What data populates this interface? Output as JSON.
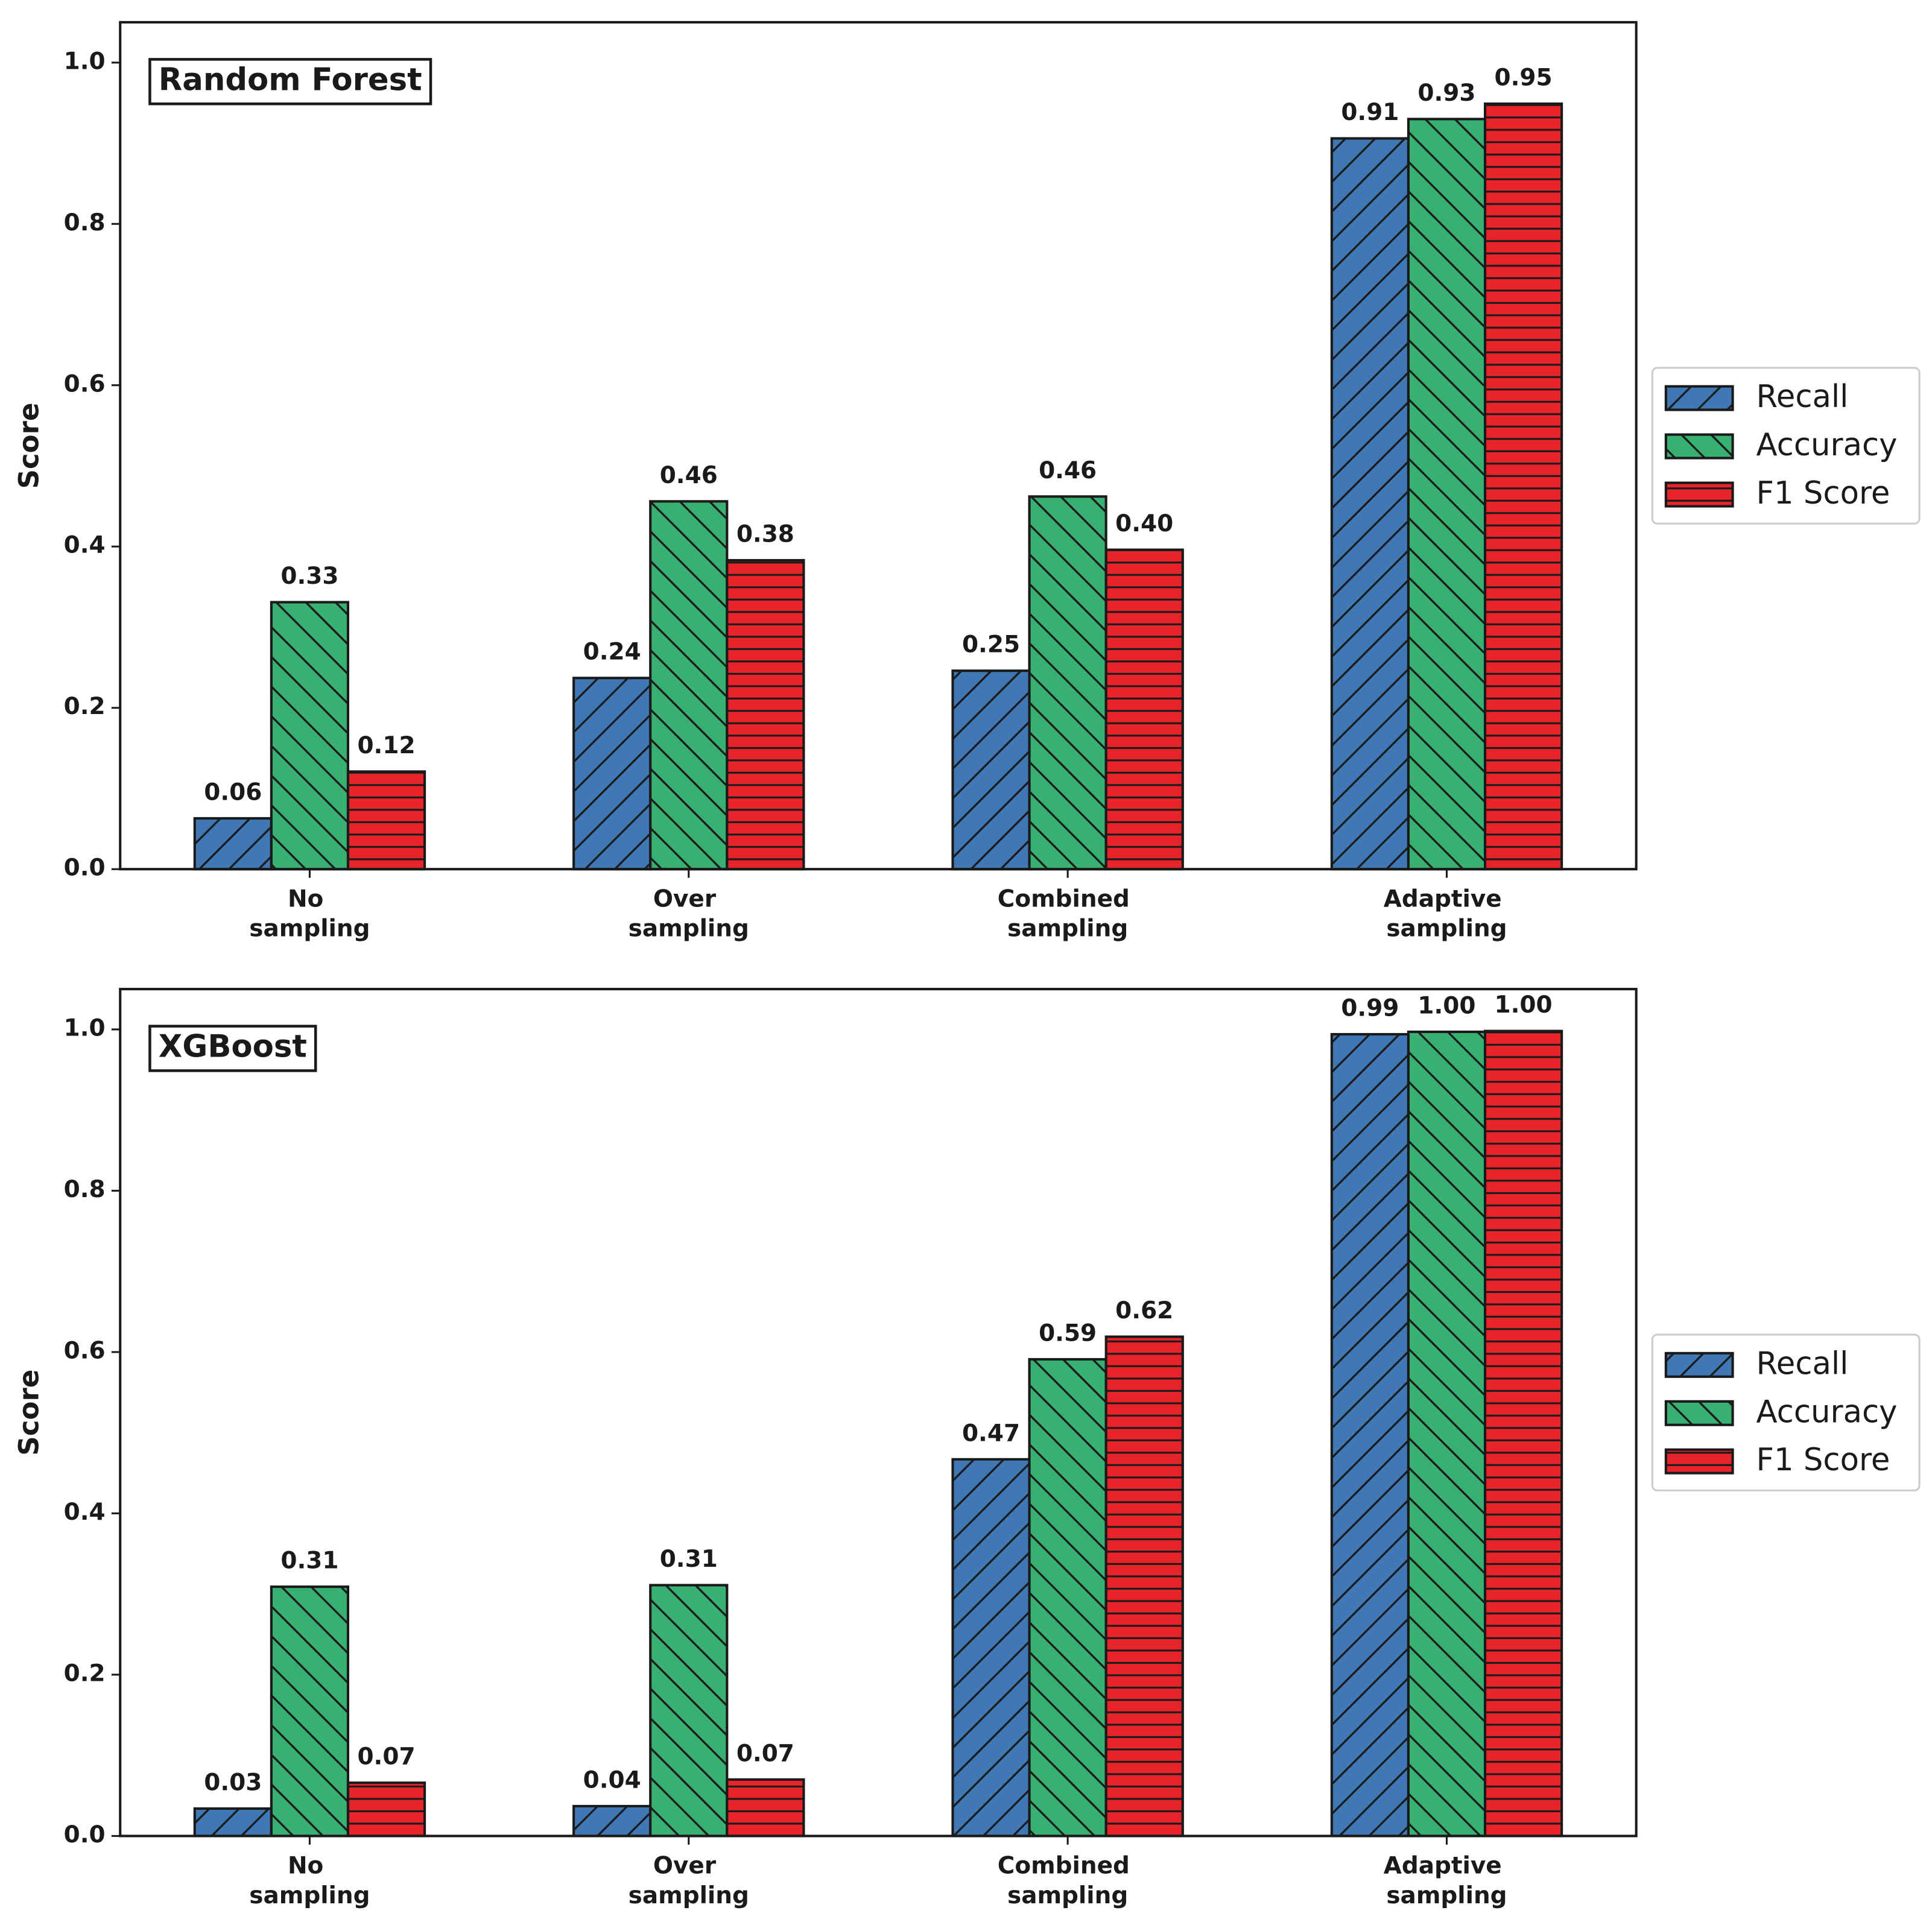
{
  "chart_data": [
    {
      "type": "bar",
      "title": "Random Forest",
      "y_label": "Score",
      "categories": [
        "No sampling",
        "Over sampling",
        "Combined sampling",
        "Adaptive sampling"
      ],
      "series": [
        {
          "name": "Recall",
          "color": "#3f78b4",
          "hatch": "/",
          "values": [
            0.063,
            0.237,
            0.246,
            0.906
          ],
          "value_labels": [
            "0.06",
            "0.24",
            "0.25",
            "0.91"
          ]
        },
        {
          "name": "Accuracy",
          "color": "#37b072",
          "hatch": "\\",
          "values": [
            0.331,
            0.456,
            0.462,
            0.93
          ],
          "value_labels": [
            "0.33",
            "0.46",
            "0.46",
            "0.93"
          ]
        },
        {
          "name": "F1 Score",
          "color": "#e8242b",
          "hatch": "-",
          "values": [
            0.121,
            0.383,
            0.396,
            0.949
          ],
          "value_labels": [
            "0.12",
            "0.38",
            "0.40",
            "0.95"
          ]
        }
      ],
      "ylim": [
        0,
        1.05
      ],
      "yticks": [
        {
          "value": 0,
          "label": "0.0"
        },
        {
          "value": 0.2,
          "label": "0.2"
        },
        {
          "value": 0.4,
          "label": "0.4"
        },
        {
          "value": 0.6,
          "label": "0.6"
        },
        {
          "value": 0.8,
          "label": "0.8"
        },
        {
          "value": 1.0,
          "label": "1.0"
        }
      ],
      "legend": "outside right"
    },
    {
      "type": "bar",
      "title": "XGBoost",
      "y_label": "Score",
      "categories": [
        "No sampling",
        "Over sampling",
        "Combined sampling",
        "Adaptive sampling"
      ],
      "series": [
        {
          "name": "Recall",
          "color": "#3f78b4",
          "hatch": "/",
          "values": [
            0.034,
            0.037,
            0.467,
            0.994
          ],
          "value_labels": [
            "0.03",
            "0.04",
            "0.47",
            "0.99"
          ]
        },
        {
          "name": "Accuracy",
          "color": "#37b072",
          "hatch": "\\",
          "values": [
            0.309,
            0.311,
            0.591,
            0.997
          ],
          "value_labels": [
            "0.31",
            "0.31",
            "0.59",
            "1.00"
          ]
        },
        {
          "name": "F1 Score",
          "color": "#e8242b",
          "hatch": "-",
          "values": [
            0.066,
            0.07,
            0.619,
            0.998
          ],
          "value_labels": [
            "0.07",
            "0.07",
            "0.62",
            "1.00"
          ]
        }
      ],
      "ylim": [
        0,
        1.05
      ],
      "yticks": [
        {
          "value": 0,
          "label": "0.0"
        },
        {
          "value": 0.2,
          "label": "0.2"
        },
        {
          "value": 0.4,
          "label": "0.4"
        },
        {
          "value": 0.6,
          "label": "0.6"
        },
        {
          "value": 0.8,
          "label": "0.8"
        },
        {
          "value": 1.0,
          "label": "1.0"
        }
      ],
      "legend": "outside right"
    }
  ]
}
